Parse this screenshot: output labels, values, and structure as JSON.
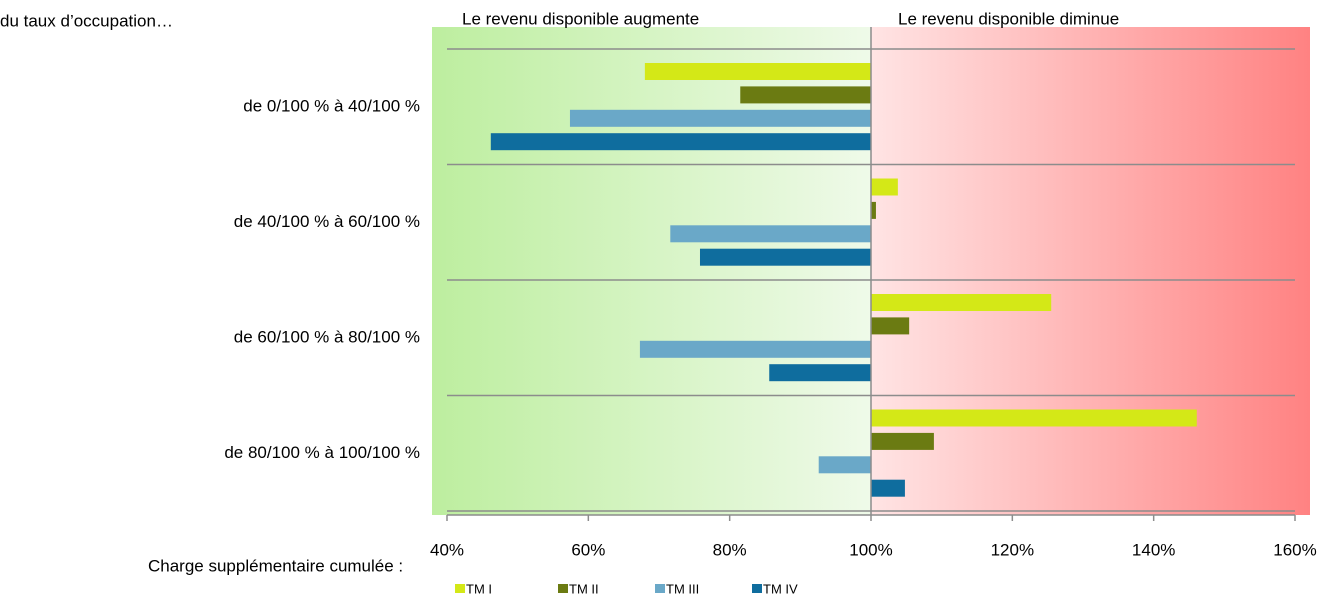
{
  "chart_data": {
    "type": "bar",
    "orientation": "horizontal",
    "title": "du taux d’occupation…",
    "annotations": [
      "Le revenu disponible augmente",
      "Le revenu disponible diminue"
    ],
    "xlabel": "Charge supplémentaire cumulée :",
    "categories": [
      "de 0/100 % à 40/100 %",
      "de 40/100 % à 60/100 %",
      "de 60/100 % à 80/100 %",
      "de 80/100 % à 100/100 %"
    ],
    "series": [
      {
        "name": "TM I",
        "color": "#d4e817",
        "values": [
          68,
          103.8,
          125.5,
          146.1
        ]
      },
      {
        "name": "TM II",
        "color": "#6b7b12",
        "values": [
          81.5,
          100.7,
          105.4,
          108.9
        ]
      },
      {
        "name": "TM III",
        "color": "#6aa8c8",
        "values": [
          57.4,
          71.6,
          67.3,
          92.6
        ]
      },
      {
        "name": "TM IV",
        "color": "#0f6d9e",
        "values": [
          46.2,
          75.8,
          85.6,
          104.8
        ]
      }
    ],
    "xlim": [
      40,
      160
    ],
    "xticks": [
      {
        "value": 40,
        "label": "40%"
      },
      {
        "value": 60,
        "label": "60%"
      },
      {
        "value": 80,
        "label": "80%"
      },
      {
        "value": 100,
        "label": "100%"
      },
      {
        "value": 120,
        "label": "120%"
      },
      {
        "value": 140,
        "label": "140%"
      },
      {
        "value": 160,
        "label": "160%"
      }
    ],
    "legend": "bottom"
  }
}
